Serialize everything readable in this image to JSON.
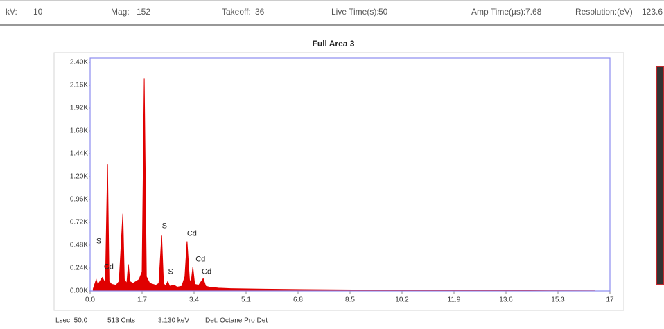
{
  "header": {
    "items": [
      {
        "label": "kV:",
        "value": 10
      },
      {
        "label": "Mag:",
        "value": 152
      },
      {
        "label": "Takeoff:",
        "value": 36
      },
      {
        "label": "Live Time(s):",
        "value": 50
      },
      {
        "label": "Amp Time(µs):",
        "value": 7.68
      },
      {
        "label": "Resolution:(eV)",
        "value": 123.6
      }
    ]
  },
  "chart_data": {
    "type": "area",
    "title": "Full Area 3",
    "color": "#e00000",
    "x": [
      0.1,
      0.2,
      0.25,
      0.3,
      0.4,
      0.5,
      0.57,
      0.62,
      0.7,
      0.85,
      0.95,
      1.07,
      1.12,
      1.2,
      1.25,
      1.3,
      1.4,
      1.5,
      1.6,
      1.7,
      1.77,
      1.84,
      1.95,
      2.05,
      2.15,
      2.25,
      2.34,
      2.4,
      2.47,
      2.54,
      2.6,
      2.75,
      2.85,
      3.0,
      3.1,
      3.17,
      3.25,
      3.3,
      3.36,
      3.42,
      3.55,
      3.7,
      3.78,
      3.9,
      4.2,
      4.6,
      5.5,
      7,
      9,
      11,
      13,
      15,
      16.5
    ],
    "values": [
      0.02,
      0.12,
      0.06,
      0.09,
      0.14,
      0.08,
      1.33,
      0.1,
      0.07,
      0.06,
      0.1,
      0.81,
      0.12,
      0.08,
      0.28,
      0.1,
      0.08,
      0.1,
      0.12,
      0.2,
      2.23,
      0.15,
      0.08,
      0.07,
      0.06,
      0.08,
      0.58,
      0.08,
      0.05,
      0.1,
      0.05,
      0.06,
      0.04,
      0.05,
      0.15,
      0.52,
      0.12,
      0.08,
      0.25,
      0.07,
      0.06,
      0.13,
      0.05,
      0.04,
      0.03,
      0.025,
      0.02,
      0.015,
      0.01,
      0.007,
      0.005,
      0.003,
      0.002
    ],
    "xlim": [
      0,
      17
    ],
    "xticks": [
      {
        "value": 0,
        "label": "0.0"
      },
      1.7,
      3.4,
      5.1,
      6.8,
      8.5,
      10.2,
      11.9,
      13.6,
      15.3,
      17
    ],
    "ylim": [
      0,
      2.4
    ],
    "yticks": [
      {
        "value": 0,
        "label": "0.00K"
      },
      {
        "value": 0.24,
        "label": "0.24K"
      },
      {
        "value": 0.48,
        "label": "0.48K"
      },
      {
        "value": 0.72,
        "label": "0.72K"
      },
      {
        "value": 0.96,
        "label": "0.96K"
      },
      {
        "value": 1.2,
        "label": "1.20K"
      },
      {
        "value": 1.44,
        "label": "1.44K"
      },
      {
        "value": 1.68,
        "label": "1.68K"
      },
      {
        "value": 1.92,
        "label": "1.92K"
      },
      {
        "value": 2.16,
        "label": "2.16K"
      },
      {
        "value": 2.4,
        "label": "2.40K"
      }
    ],
    "annotations": [
      {
        "text": "S",
        "x": 0.2,
        "y": 0.52
      },
      {
        "text": "Cd",
        "x": 0.45,
        "y": 0.25
      },
      {
        "text": "S",
        "x": 2.35,
        "y": 0.68
      },
      {
        "text": "S",
        "x": 2.55,
        "y": 0.2
      },
      {
        "text": "Cd",
        "x": 3.17,
        "y": 0.6
      },
      {
        "text": "Cd",
        "x": 3.45,
        "y": 0.33
      },
      {
        "text": "Cd",
        "x": 3.65,
        "y": 0.2
      }
    ]
  },
  "footer": {
    "items": [
      "Lsec: 50.0",
      "513 Cnts",
      "3.130 keV",
      "Det: Octane Pro Det"
    ]
  }
}
